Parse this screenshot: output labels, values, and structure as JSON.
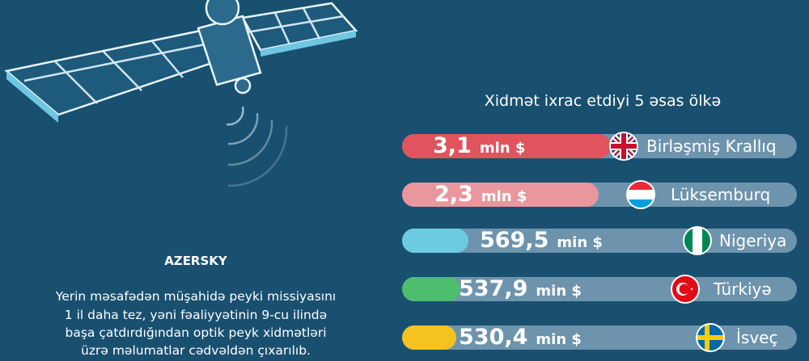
{
  "title": "Xidmət ixrac etdiyi 5 əsas ölkə",
  "rows": [
    {
      "amount": "3,1",
      "unit": "mln $",
      "country": "Birləşmiş Krallıq"
    },
    {
      "amount": "2,3",
      "unit": "mln $",
      "country": "Lüksemburq"
    },
    {
      "amount": "569,5",
      "unit": "min $",
      "country": "Nigeriya"
    },
    {
      "amount": "537,9",
      "unit": "min $",
      "country": "Türkiyə"
    },
    {
      "amount": "530,4",
      "unit": "min $",
      "country": "İsveç"
    }
  ],
  "brand": "AZERSKY",
  "description": [
    "Yerin məsafədən müşahidə peyki missiyasını",
    "1 il daha tez, yəni fəaliyyətinin 9-cu ilində",
    "başa çatdırdığından optik peyk xidmətləri",
    "üzrə məlumatlar cədvəldən çıxarılıb."
  ]
}
